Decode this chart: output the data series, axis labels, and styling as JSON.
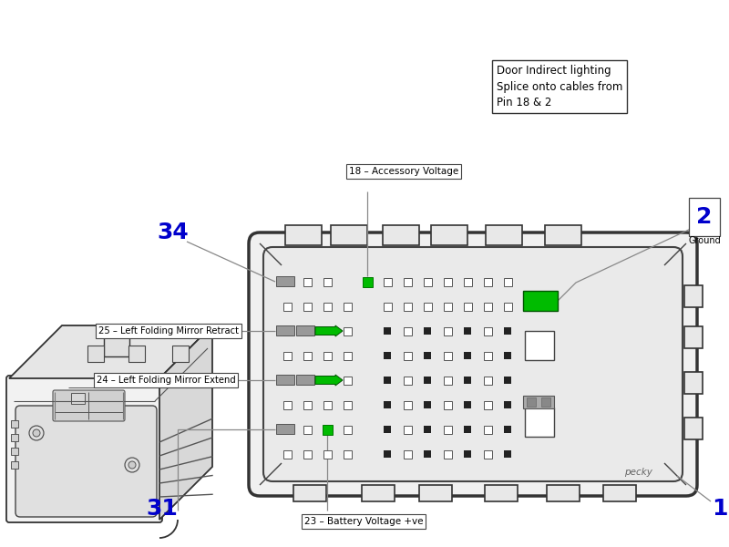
{
  "bg_color": "#ffffff",
  "green_color": "#00bb00",
  "blue_color": "#0000cc",
  "gray_color": "#888888",
  "dark_color": "#222222",
  "edge_color": "#333333",
  "note_text": "Door Indirect lighting\nSplice onto cables from\nPin 18 & 2",
  "label_18": "18 – Accessory Voltage",
  "label_2_num": "2",
  "label_2_sub": "Ground",
  "label_34": "34",
  "label_25": "25 – Left Folding Mirror Retract",
  "label_24": "24 – Left Folding Mirror Extend",
  "label_31": "31",
  "label_1": "1",
  "label_23": "23 – Battery Voltage +ve",
  "label_pecky": "pecky",
  "figw": 8.0,
  "figh": 6.0
}
